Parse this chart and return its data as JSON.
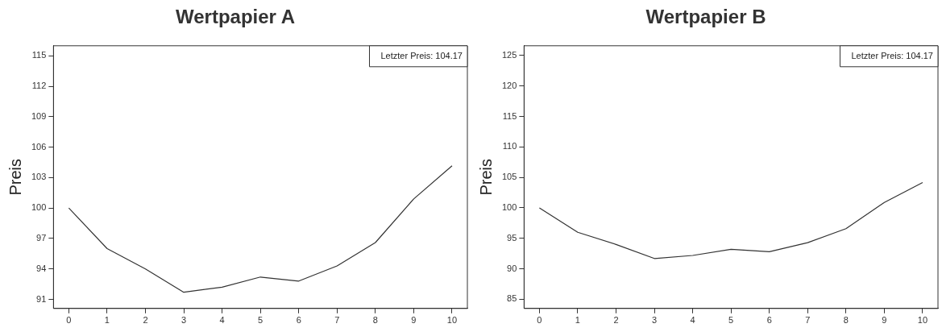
{
  "chart_data": [
    {
      "type": "line",
      "title": "Wertpapier A",
      "ylabel": "Preis",
      "x": [
        0,
        1,
        2,
        3,
        4,
        5,
        6,
        7,
        8,
        9,
        10
      ],
      "series": [
        {
          "color": "#333333",
          "values": [
            100,
            96.0,
            94.0,
            91.7,
            92.2,
            93.2,
            92.8,
            94.3,
            96.6,
            100.9,
            104.17
          ]
        }
      ],
      "xlim": [
        -0.4,
        10.4
      ],
      "xticks": [
        0,
        1,
        2,
        3,
        4,
        5,
        6,
        7,
        8,
        9,
        10
      ],
      "ylim": [
        90.1,
        116
      ],
      "yticks": [
        91,
        94,
        97,
        100,
        103,
        106,
        109,
        112,
        115
      ],
      "annotations": [
        "Letzter Preis: 104.17"
      ],
      "grid": false,
      "legend": false,
      "marker": "none",
      "line_style": "solid"
    },
    {
      "type": "line",
      "title": "Wertpapier B",
      "ylabel": "Preis",
      "x": [
        0,
        1,
        2,
        3,
        4,
        5,
        6,
        7,
        8,
        9,
        10
      ],
      "series": [
        {
          "color": "#333333",
          "values": [
            100,
            96.0,
            94.0,
            91.7,
            92.2,
            93.2,
            92.8,
            94.3,
            96.6,
            100.9,
            104.17
          ]
        }
      ],
      "xlim": [
        -0.4,
        10.4
      ],
      "xticks": [
        0,
        1,
        2,
        3,
        4,
        5,
        6,
        7,
        8,
        9,
        10
      ],
      "ylim": [
        83.5,
        126.6
      ],
      "yticks": [
        85,
        90,
        95,
        100,
        105,
        110,
        115,
        120,
        125
      ],
      "annotations": [
        "Letzter Preis: 104.17"
      ],
      "grid": false,
      "legend": false,
      "marker": "none",
      "line_style": "solid"
    }
  ]
}
